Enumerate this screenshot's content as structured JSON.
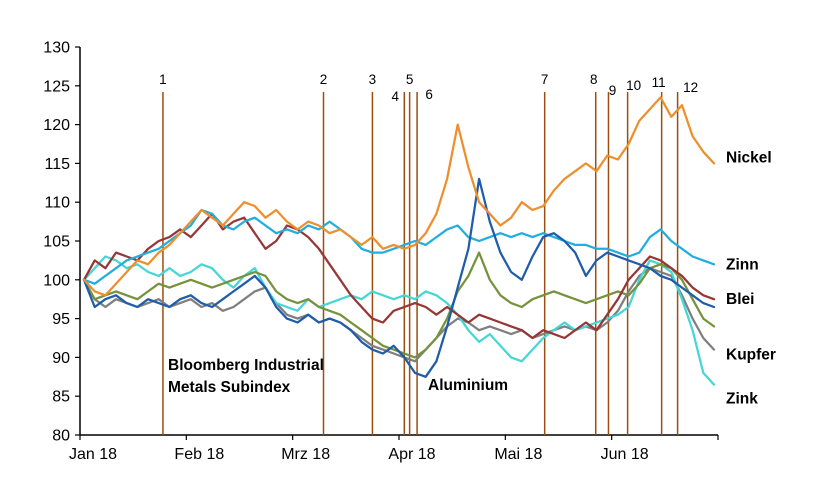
{
  "chart_data": {
    "type": "line",
    "title": "",
    "x_tick_labels": [
      "Jan 18",
      "Feb 18",
      "Mrz 18",
      "Apr 18",
      "Mai 18",
      "Jun 18"
    ],
    "y_ticks": [
      80,
      85,
      90,
      95,
      100,
      105,
      110,
      115,
      120,
      125,
      130
    ],
    "ylim": [
      80,
      130
    ],
    "grid": false,
    "legend_position": "end-of-line-labels",
    "series": [
      {
        "name": "Kupfer",
        "color": "#7F7F7F",
        "right_label": true,
        "label_dy": 5,
        "values": [
          100,
          97.5,
          96.5,
          97.5,
          97,
          96.5,
          97,
          97.5,
          96.5,
          97,
          97.5,
          96.5,
          97,
          96,
          96.5,
          97.5,
          98.5,
          99,
          97,
          95.5,
          95,
          95.5,
          94.5,
          95,
          94.5,
          93.5,
          92.5,
          91.5,
          91,
          90.5,
          90,
          89.5,
          91,
          92.5,
          94,
          95,
          94.5,
          93.5,
          94,
          93.5,
          93,
          93.5,
          92.5,
          93,
          93.5,
          94,
          93.5,
          94,
          93.5,
          94.5,
          96,
          98.5,
          100.5,
          101.5,
          101,
          100.5,
          98,
          95,
          92.5,
          91
        ]
      },
      {
        "name": "Zink",
        "color": "#45D6D6",
        "right_label": true,
        "label_dy": 14,
        "values": [
          100,
          101.5,
          103,
          102.5,
          101.5,
          102,
          101,
          100.5,
          101.5,
          100.5,
          101,
          102,
          101.5,
          100,
          99,
          100.5,
          101.5,
          99,
          97,
          96.5,
          96,
          97.5,
          96.5,
          97,
          97.5,
          98,
          97.5,
          98.5,
          98,
          97.5,
          98,
          97.5,
          98.5,
          98,
          97,
          95.5,
          93.5,
          92,
          93,
          91.5,
          90,
          89.5,
          91,
          92.5,
          93.5,
          94.5,
          93.5,
          94,
          94.5,
          95,
          95.5,
          96.5,
          100,
          102.5,
          102,
          101,
          97.5,
          93.5,
          88,
          86.5
        ]
      },
      {
        "name": "Bloomberg Industrial Metals Subindex",
        "color": "#76923C",
        "right_label": false,
        "label_dy": 0,
        "values": [
          100,
          97.5,
          98,
          98.5,
          98,
          97.5,
          98.5,
          99.5,
          99,
          99.5,
          100,
          99.5,
          99,
          99.5,
          100,
          100.5,
          101,
          100.5,
          98.5,
          97.5,
          97,
          97.5,
          96.5,
          96,
          95.5,
          94.5,
          93.5,
          92.5,
          91.5,
          91,
          90.5,
          90,
          91,
          92.5,
          95,
          98.5,
          100.5,
          103.5,
          100,
          98,
          97,
          96.5,
          97.5,
          98,
          98.5,
          98,
          97.5,
          97,
          97.5,
          98,
          98.5,
          98,
          99.5,
          101.5,
          102,
          101.5,
          100,
          97.5,
          95,
          94
        ]
      },
      {
        "name": "Blei",
        "color": "#953735",
        "right_label": true,
        "label_dy": 0,
        "values": [
          100,
          102.5,
          101.5,
          103.5,
          103,
          102.5,
          104,
          105,
          105.5,
          106.5,
          105.5,
          107,
          108.5,
          106.5,
          107.5,
          108,
          106,
          104,
          105,
          107,
          106.5,
          105.5,
          104,
          102,
          100,
          98,
          96.5,
          95,
          94.5,
          96,
          96.5,
          97,
          96.5,
          95.5,
          96.5,
          95.5,
          94.5,
          95.5,
          95,
          94.5,
          94,
          93.5,
          92.5,
          93.5,
          93,
          92.5,
          93.5,
          94.5,
          93.5,
          95.5,
          97.5,
          100,
          101.5,
          103,
          102.5,
          101.5,
          100.5,
          99,
          98,
          97.5
        ]
      },
      {
        "name": "Zinn",
        "color": "#21AEDE",
        "right_label": true,
        "label_dy": 0,
        "values": [
          100,
          99.5,
          100.5,
          101.5,
          102.5,
          103,
          103.5,
          104,
          105,
          106,
          107,
          109,
          108.5,
          107,
          106.5,
          107.5,
          108,
          107,
          106,
          106.5,
          106,
          107,
          106.5,
          107.5,
          106.5,
          105.5,
          104,
          103.5,
          103.5,
          104,
          104.5,
          105,
          104.5,
          105.5,
          106.5,
          107,
          105.5,
          105,
          105.5,
          106,
          105.5,
          106,
          105.5,
          106,
          105.5,
          105,
          104.5,
          104.5,
          104,
          104,
          103.5,
          103,
          103.5,
          105.5,
          106.5,
          105,
          104,
          103,
          102.5,
          102
        ]
      },
      {
        "name": "Aluminium",
        "color": "#1F5CA9",
        "right_label": false,
        "label_dy": 0,
        "values": [
          100,
          96.5,
          97.5,
          98,
          97,
          96.5,
          97.5,
          97,
          96.5,
          97.5,
          98,
          97,
          96.5,
          97.5,
          98.5,
          99.5,
          100.5,
          99,
          96.5,
          95,
          94.5,
          95.5,
          94.5,
          95,
          94.5,
          93.5,
          92,
          91,
          90.5,
          91.5,
          90,
          88,
          87.5,
          89.5,
          94,
          99,
          104,
          113,
          107.5,
          103.5,
          101,
          100,
          103,
          105.5,
          106,
          105,
          103.5,
          100.5,
          102.5,
          103.5,
          103,
          102.5,
          102,
          101.5,
          100.5,
          100,
          99,
          98,
          97,
          96.5
        ]
      },
      {
        "name": "Nickel",
        "color": "#EE8F2D",
        "right_label": true,
        "label_dy": -6,
        "values": [
          100,
          98.5,
          98,
          99.5,
          101,
          102.5,
          102,
          103.5,
          104.5,
          106,
          107.5,
          109,
          108,
          107,
          108.5,
          110,
          109.5,
          108,
          109,
          107.5,
          106.5,
          107.5,
          107,
          106,
          106.5,
          105.5,
          104.5,
          105.5,
          104,
          104.5,
          104,
          104.5,
          106,
          108.5,
          113,
          120,
          114.5,
          110,
          108.5,
          107,
          108,
          110,
          109,
          109.5,
          111.5,
          113,
          114,
          115,
          114,
          116,
          115.5,
          117.5,
          120.5,
          122,
          123.5,
          121,
          122.5,
          118.5,
          116.5,
          115
        ]
      }
    ],
    "event_markers": {
      "color": "#9B4F0F",
      "items": [
        {
          "label": "1",
          "month_x": 0.78,
          "label_y": 84,
          "label_dx": 0
        },
        {
          "label": "2",
          "month_x": 2.29,
          "label_y": 84,
          "label_dx": 0
        },
        {
          "label": "3",
          "month_x": 2.75,
          "label_y": 84,
          "label_dx": 0
        },
        {
          "label": "4",
          "month_x": 3.05,
          "label_y": 101,
          "label_dx": -9
        },
        {
          "label": "5",
          "month_x": 3.1,
          "label_y": 84,
          "label_dx": 0
        },
        {
          "label": "6",
          "month_x": 3.17,
          "label_y": 99,
          "label_dx": 12
        },
        {
          "label": "7",
          "month_x": 4.37,
          "label_y": 84,
          "label_dx": 0
        },
        {
          "label": "8",
          "month_x": 4.85,
          "label_y": 84,
          "label_dx": -2
        },
        {
          "label": "9",
          "month_x": 4.97,
          "label_y": 95,
          "label_dx": 4
        },
        {
          "label": "10",
          "month_x": 5.15,
          "label_y": 90,
          "label_dx": 6
        },
        {
          "label": "11",
          "month_x": 5.47,
          "label_y": 87,
          "label_dx": -3
        },
        {
          "label": "12",
          "month_x": 5.62,
          "label_y": 92,
          "label_dx": 13
        }
      ]
    },
    "annotations": [
      {
        "text": "Bloomberg Industrial",
        "color": "#76923C",
        "x": 168,
        "y": 370
      },
      {
        "text": "Metals Subindex",
        "color": "#76923C",
        "x": 168,
        "y": 392
      },
      {
        "text": "Aluminium",
        "color": "#1F5CA9",
        "x": 428,
        "y": 390
      }
    ]
  }
}
